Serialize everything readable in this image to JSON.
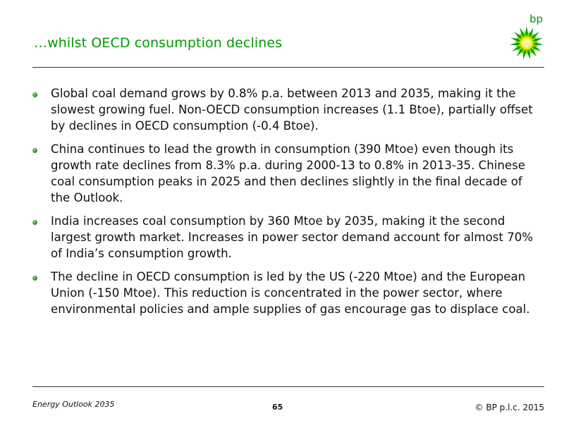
{
  "slide": {
    "title": "…whilst OECD consumption declines",
    "logo_text": "bp"
  },
  "bullets": [
    {
      "text": "Global coal demand grows by 0.8% p.a. between 2013 and 2035, making it the slowest growing fuel. Non-OECD consumption increases (1.1 Btoe), partially offset by declines in OECD consumption (-0.4 Btoe)."
    },
    {
      "text": "China continues to lead the growth in consumption (390 Mtoe) even though its growth rate declines from 8.3% p.a. during 2000-13 to 0.8% in 2013-35. Chinese coal consumption peaks in 2025 and then declines slightly in the final decade of the Outlook."
    },
    {
      "text": "India increases coal consumption by 360 Mtoe by 2035, making it the second largest growth market. Increases in power sector demand account for almost 70% of India’s consumption growth."
    },
    {
      "text": "The decline in OECD consumption is led by the US (-220 Mtoe) and the European Union (-150 Mtoe). This reduction is concentrated in the power sector, where environmental policies and ample supplies of gas encourage gas to displace coal."
    }
  ],
  "footer": {
    "publication": "Energy Outlook 2035",
    "page_number": "65",
    "copyright": "© BP p.l.c. 2015"
  },
  "colors": {
    "title_green": "#009900",
    "bullet_green": "#2e9a2e",
    "logo_green": "#009900",
    "logo_yellow": "#ffe600"
  },
  "icons": {
    "logo": "bp-helios-logo-icon",
    "bullet": "green-bullet-icon"
  }
}
